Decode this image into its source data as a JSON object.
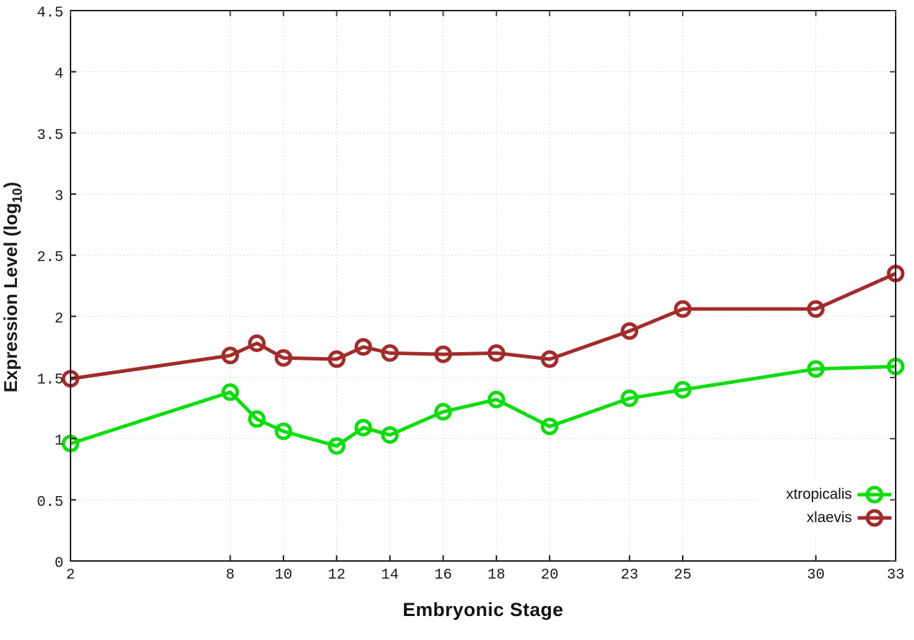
{
  "chart_data": {
    "type": "line",
    "title": "",
    "xlabel": "Embryonic Stage",
    "ylabel": {
      "pre": "Expression Level (log",
      "sub": "10",
      "post": ")"
    },
    "x": [
      2,
      8,
      9,
      10,
      12,
      13,
      14,
      16,
      18,
      20,
      23,
      25,
      30,
      33
    ],
    "xticks": [
      2,
      8,
      10,
      12,
      14,
      16,
      18,
      20,
      23,
      25,
      30,
      33
    ],
    "yticks": [
      0,
      0.5,
      1,
      1.5,
      2,
      2.5,
      3,
      3.5,
      4,
      4.5
    ],
    "xlim": [
      2,
      33
    ],
    "ylim": [
      0,
      4.5
    ],
    "grid": true,
    "legend_position": "inside-bottom-right",
    "series": [
      {
        "name": "xtropicalis",
        "color": "#0ddd0d",
        "marker": "open-circle",
        "values": [
          0.96,
          1.38,
          1.16,
          1.06,
          0.94,
          1.09,
          1.03,
          1.22,
          1.32,
          1.1,
          1.33,
          1.4,
          1.57,
          1.59
        ]
      },
      {
        "name": "xlaevis",
        "color": "#a32b2b",
        "marker": "open-circle",
        "values": [
          1.49,
          1.68,
          1.78,
          1.66,
          1.65,
          1.75,
          1.7,
          1.69,
          1.7,
          1.65,
          1.88,
          2.06,
          2.06,
          2.35
        ]
      }
    ]
  },
  "colors": {
    "background": "#ffffff",
    "grid": "#c8c8c8",
    "axis": "#1a1a1a",
    "mirror_tick": "#444444",
    "text": "#1a1a1a"
  }
}
